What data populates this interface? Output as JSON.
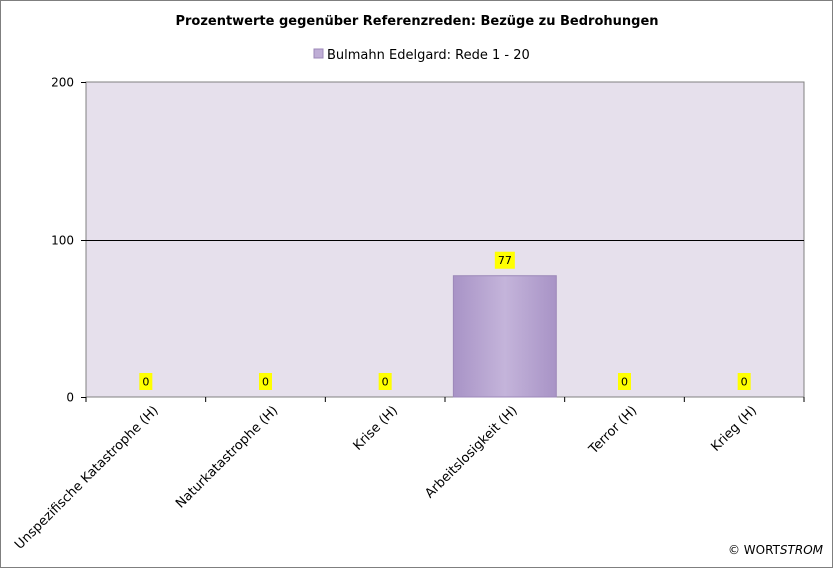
{
  "chart_data": {
    "type": "bar",
    "title": "Prozentwerte gegenüber Referenzreden:  Bezüge zu Bedrohungen",
    "categories": [
      "Unspezifische Katastrophe (H)",
      "Naturkatastrophe (H)",
      "Krise (H)",
      "Arbeitslosigkeit (H)",
      "Terror (H)",
      "Krieg (H)"
    ],
    "series": [
      {
        "name": "Bulmahn Edelgard: Rede 1 - 20",
        "values": [
          0,
          0,
          0,
          77,
          0,
          0
        ]
      }
    ],
    "ylim": [
      0,
      200
    ],
    "yticks": [
      0,
      100,
      200
    ],
    "xlabel": "",
    "ylabel": "",
    "grid": "horizontal",
    "legend_position": "top",
    "data_labels": true,
    "colors": {
      "plot_background": "#e6e0ec",
      "bar_fill": "#bfaed6",
      "bar_stroke": "#9c88b8",
      "label_background": "#ffff00"
    }
  },
  "credit": {
    "prefix": "© WORT",
    "suffix": "STROM"
  }
}
